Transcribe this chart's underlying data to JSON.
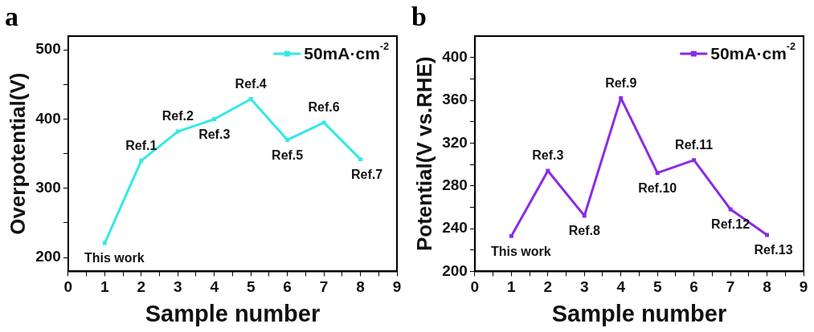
{
  "chart_data": [
    {
      "type": "line",
      "title": "a",
      "xlabel": "Sample number",
      "ylabel": "Overpotential(V)",
      "x": [
        1,
        2,
        3,
        4,
        5,
        6,
        7,
        8
      ],
      "series": [
        {
          "name": "50mA·cm$^{-2}$",
          "color": "#33e8e8",
          "values": [
            221,
            340,
            382,
            400,
            429,
            370,
            395,
            342
          ]
        }
      ],
      "xlim": [
        0,
        9
      ],
      "xticks": [
        0,
        {
          "value": 0.5,
          "label": null
        },
        1,
        {
          "value": 1.5,
          "label": null
        },
        2,
        {
          "value": 2.5,
          "label": null
        },
        3,
        {
          "value": 3.5,
          "label": null
        },
        4,
        {
          "value": 4.5,
          "label": null
        },
        5,
        {
          "value": 5.5,
          "label": null
        },
        6,
        {
          "value": 6.5,
          "label": null
        },
        7,
        {
          "value": 7.5,
          "label": null
        },
        8,
        {
          "value": 8.5,
          "label": null
        },
        9
      ],
      "ylim": [
        180,
        520
      ],
      "yticks": [
        200,
        {
          "value": 250,
          "label": null
        },
        300,
        {
          "value": 350,
          "label": null
        },
        400,
        {
          "value": 450,
          "label": null
        },
        500
      ],
      "annotations": [
        {
          "text": "This work",
          "x": 1,
          "y": 221
        },
        {
          "text": "Ref.1",
          "x": 2,
          "y": 340
        },
        {
          "text": "Ref.2",
          "x": 3,
          "y": 382
        },
        {
          "text": "Ref.3",
          "x": 4,
          "y": 400
        },
        {
          "text": "Ref.4",
          "x": 5,
          "y": 429
        },
        {
          "text": "Ref.5",
          "x": 6,
          "y": 370
        },
        {
          "text": "Ref.6",
          "x": 7,
          "y": 395
        },
        {
          "text": "Ref.7",
          "x": 8,
          "y": 342
        }
      ],
      "legend": "top right",
      "marker": "square",
      "grid": false
    },
    {
      "type": "line",
      "title": "b",
      "xlabel": "Sample number",
      "ylabel": "Potential(V vs.RHE)",
      "x": [
        1,
        2,
        3,
        4,
        5,
        6,
        7,
        8
      ],
      "series": [
        {
          "name": "50mA·cm$^{-2}$",
          "color": "#8a2be6",
          "values": [
            233,
            294,
            252,
            362,
            292,
            304,
            258,
            234
          ]
        }
      ],
      "xlim": [
        0,
        9
      ],
      "xticks": [
        0,
        {
          "value": 0.5,
          "label": null
        },
        1,
        {
          "value": 1.5,
          "label": null
        },
        2,
        {
          "value": 2.5,
          "label": null
        },
        3,
        {
          "value": 3.5,
          "label": null
        },
        4,
        {
          "value": 4.5,
          "label": null
        },
        5,
        {
          "value": 5.5,
          "label": null
        },
        6,
        {
          "value": 6.5,
          "label": null
        },
        7,
        {
          "value": 7.5,
          "label": null
        },
        8,
        {
          "value": 8.5,
          "label": null
        },
        9
      ],
      "ylim": [
        200,
        420
      ],
      "yticks": [
        200,
        {
          "value": 220,
          "label": null
        },
        240,
        {
          "value": 260,
          "label": null
        },
        280,
        {
          "value": 300,
          "label": null
        },
        320,
        {
          "value": 340,
          "label": null
        },
        360,
        {
          "value": 380,
          "label": null
        },
        400
      ],
      "annotations": [
        {
          "text": "This work",
          "x": 1,
          "y": 233
        },
        {
          "text": "Ref.3",
          "x": 2,
          "y": 294
        },
        {
          "text": "Ref.8",
          "x": 3,
          "y": 252
        },
        {
          "text": "Ref.9",
          "x": 4,
          "y": 362
        },
        {
          "text": "Ref.10",
          "x": 5,
          "y": 292
        },
        {
          "text": "Ref.11",
          "x": 6,
          "y": 304
        },
        {
          "text": "Ref.12",
          "x": 7,
          "y": 258
        },
        {
          "text": "Ref.13",
          "x": 8,
          "y": 234
        }
      ],
      "legend": "top right",
      "marker": "square",
      "grid": false
    }
  ]
}
